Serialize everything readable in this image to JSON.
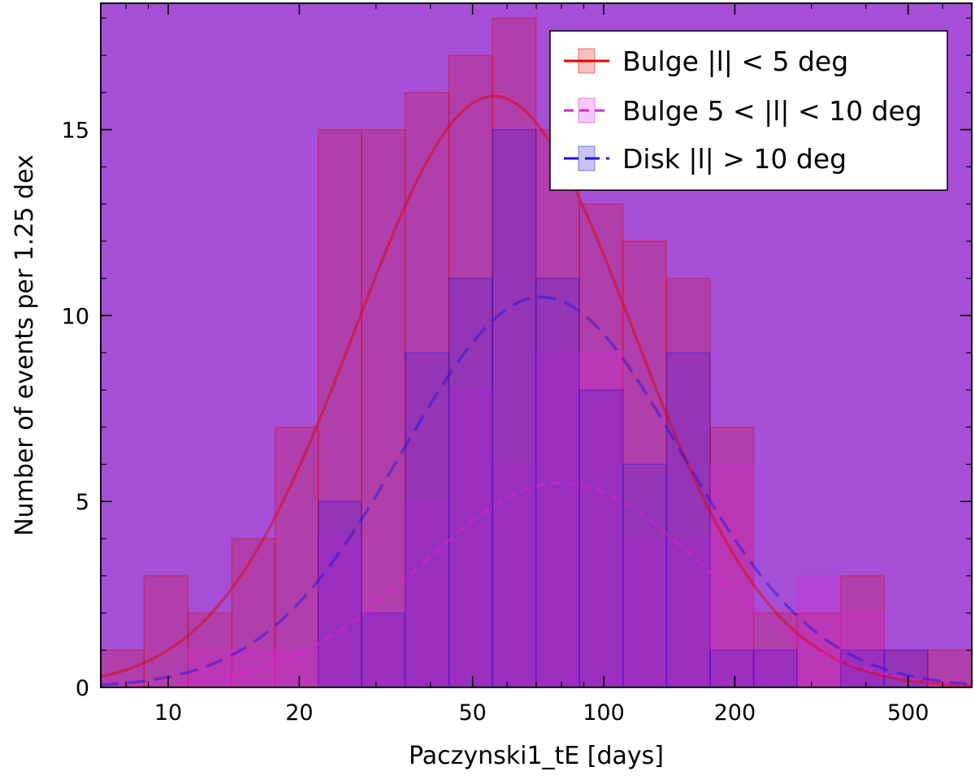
{
  "chart_data": {
    "type": "histogram",
    "xlabel": "Paczynski1_tE [days]",
    "ylabel": "Number of events per 1.25 dex",
    "x_scale": "log",
    "xlim": [
      7.0,
      700.0
    ],
    "ylim": [
      0,
      18.4
    ],
    "x_ticks": [
      10,
      20,
      50,
      100,
      200,
      500
    ],
    "x_tick_labels": [
      "10",
      "20",
      "50",
      "100",
      "200",
      "500"
    ],
    "y_ticks": [
      0,
      5,
      10,
      15
    ],
    "y_tick_labels": [
      "0",
      "5",
      "10",
      "15"
    ],
    "legend_position": "top-right",
    "bin_edges": [
      7.0,
      8.8,
      11.1,
      14.0,
      17.6,
      22.1,
      27.8,
      35.0,
      44.1,
      55.5,
      69.9,
      87.9,
      110.7,
      139.4,
      175.5,
      220.9,
      278.1,
      350.1,
      440.7,
      554.8,
      698.5
    ],
    "series": [
      {
        "name": "Bulge |l| < 5 deg",
        "line_style": "solid",
        "color": "#e00000",
        "counts": [
          1,
          3,
          2,
          4,
          7,
          15,
          15,
          16,
          17,
          18,
          15,
          13,
          12,
          11,
          7,
          2,
          2,
          3,
          1,
          1
        ],
        "fit_peak_x": 56,
        "fit_peak_y": 15.9
      },
      {
        "name": "Bulge 5 < |l| < 10 deg",
        "line_style": "dashed",
        "color": "#e020e0",
        "counts": [
          0,
          0,
          1,
          1,
          1,
          4,
          2,
          5,
          8,
          6,
          9,
          9,
          4,
          4,
          6,
          1,
          3,
          2,
          0,
          0
        ],
        "fit_peak_x": 80,
        "fit_peak_y": 5.5
      },
      {
        "name": "Disk |l| > 10 deg",
        "line_style": "long-dashed",
        "color": "#2010e0",
        "counts": [
          0,
          0,
          0,
          0,
          0,
          5,
          2,
          9,
          11,
          15,
          11,
          8,
          6,
          9,
          1,
          1,
          0,
          1,
          1,
          0
        ],
        "fit_peak_x": 72,
        "fit_peak_y": 10.5
      }
    ],
    "plot_background": "#a64fd6",
    "series_names": [
      "Bulge |l| < 5 deg",
      "Bulge 5 < |l| < 10 deg",
      "Disk |l| > 10 deg"
    ]
  }
}
